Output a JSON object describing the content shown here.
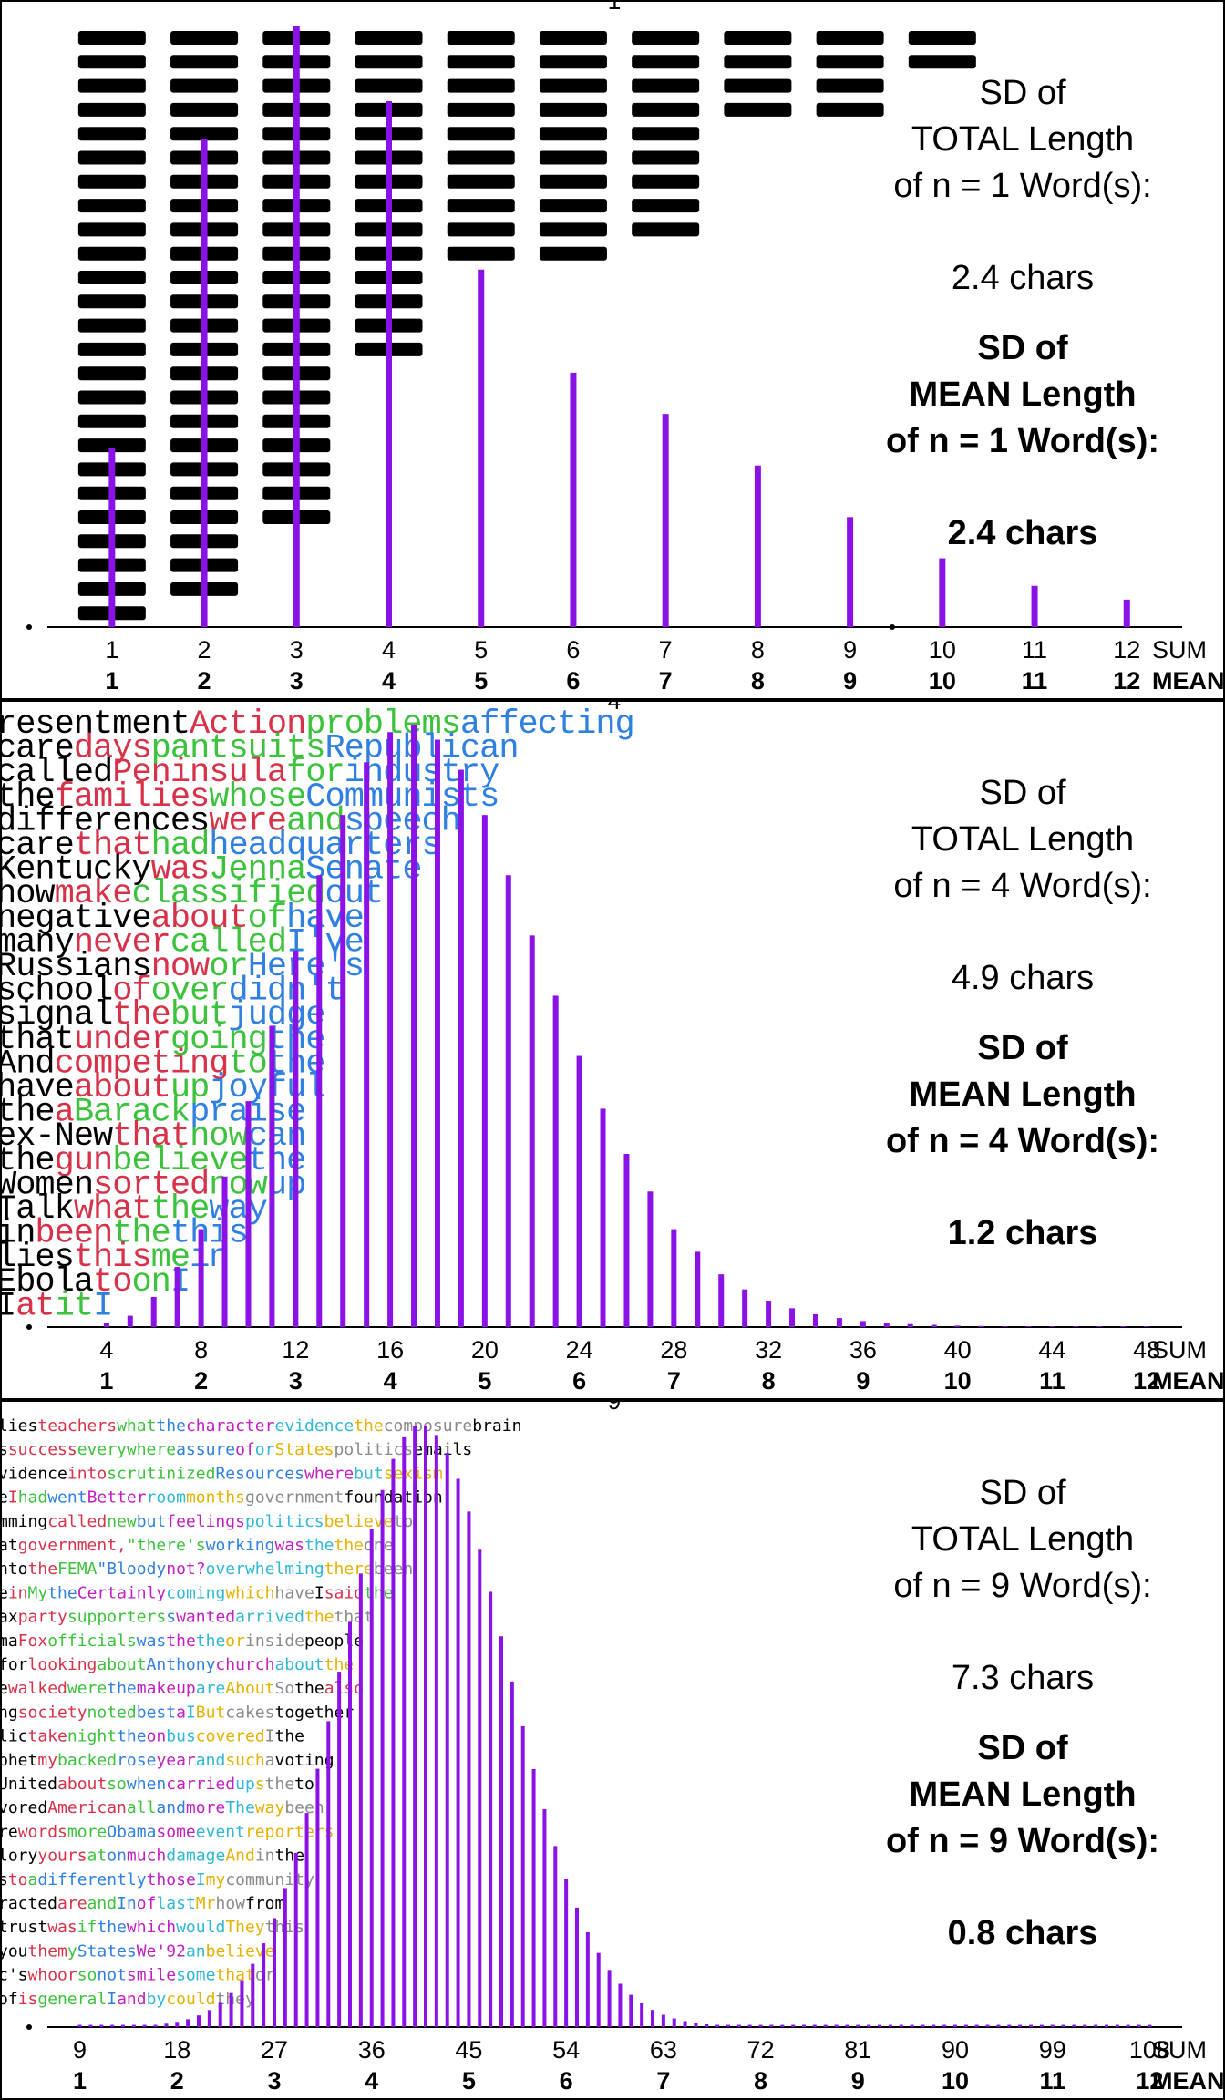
{
  "colors": {
    "bar": "#8B12E6",
    "word_palette_4": [
      "#000000",
      "#D6334A",
      "#3CC23C",
      "#2F80E0"
    ],
    "word_palette_9": [
      "#000000",
      "#D6334A",
      "#3CC23C",
      "#2F80E0",
      "#C21FC2",
      "#2FB7D6",
      "#E5B100",
      "#8A8A8A"
    ]
  },
  "panels": [
    {
      "n": 1,
      "top_number": "1",
      "stats": {
        "sd_total_lines": [
          "SD of",
          "TOTAL Length",
          "of n = 1 Word(s):"
        ],
        "sd_total_value": "2.4 chars",
        "sd_mean_lines": [
          "SD of",
          "MEAN Length",
          "of n = 1 Word(s):"
        ],
        "sd_mean_value": "2.4 chars"
      },
      "sum_label": "SUM",
      "mean_label": "MEAN"
    },
    {
      "n": 4,
      "top_number": "4",
      "stats": {
        "sd_total_lines": [
          "SD of",
          "TOTAL Length",
          "of n = 4 Word(s):"
        ],
        "sd_total_value": "4.9 chars",
        "sd_mean_lines": [
          "SD of",
          "MEAN Length",
          "of n = 4 Word(s):"
        ],
        "sd_mean_value": "1.2 chars"
      },
      "sum_label": "SUM",
      "mean_label": "MEAN",
      "word_rows": [
        [
          "resentment",
          "Action",
          "problems",
          "affecting"
        ],
        [
          "care",
          "days",
          "pantsuits",
          "Republican"
        ],
        [
          "called",
          "Peninsula",
          "for",
          "industry"
        ],
        [
          "the",
          "families",
          "whose",
          "Communists"
        ],
        [
          "differences",
          "were",
          "and",
          "speech"
        ],
        [
          "care",
          "that",
          "had",
          "headquarters"
        ],
        [
          "Kentucky",
          "was",
          "Jenna",
          "Senate"
        ],
        [
          "how",
          "make",
          "classified",
          "out"
        ],
        [
          "negative",
          "about",
          "of",
          "have"
        ],
        [
          "many",
          "never",
          "called",
          "I've"
        ],
        [
          "Russians",
          "now",
          "or",
          "Here's"
        ],
        [
          "school",
          "of",
          "over",
          "didn't"
        ],
        [
          "signal",
          "the",
          "but",
          "judge"
        ],
        [
          "that",
          "under",
          "going",
          "the"
        ],
        [
          "And",
          "competing",
          "to",
          "the"
        ],
        [
          "have",
          "about",
          "up",
          "joyful"
        ],
        [
          "the",
          "a",
          "Barack",
          "praise"
        ],
        [
          "ex-New",
          "that",
          "now",
          "can"
        ],
        [
          "the",
          "gun",
          "believe",
          "the"
        ],
        [
          "Women",
          "sorted",
          "now",
          "up"
        ],
        [
          "Talk",
          "what",
          "the",
          "way"
        ],
        [
          "in",
          "been",
          "the",
          "this"
        ],
        [
          "lies",
          "this",
          "me",
          "in"
        ],
        [
          "Ebola",
          "to",
          "on",
          "I"
        ],
        [
          "I",
          "at",
          "it",
          "I"
        ]
      ]
    },
    {
      "n": 9,
      "top_number": "9",
      "stats": {
        "sd_total_lines": [
          "SD of",
          "TOTAL Length",
          "of n = 9 Word(s):"
        ],
        "sd_total_value": "7.3 chars",
        "sd_mean_lines": [
          "SD of",
          "MEAN Length",
          "of n = 9 Word(s):"
        ],
        "sd_mean_value": "0.8 chars"
      },
      "sum_label": "SUM",
      "mean_label": "MEAN",
      "word_rows": [
        "lies teachers what the character evidence the composure brain",
        "s success everywhere assure of or States politics emails",
        "vidence into scrutinized Resources where but sexism",
        "e I had went Better room months government foundation",
        "mming called new but feelings politics believe to",
        "at government, \"there's working was the the one",
        "nto the FEMA \"Bloody not? overwhelming there been",
        "e in My the Certainly coming which have I said the",
        "ax party supporters s wanted arrived the that",
        "ma Fox officials was the the or inside people",
        "for looking about Anthony church about the",
        "e walked were the makeup are About So the also",
        "ng society noted best a I But cakes together",
        "lic take night the on bus covered I the",
        "phet my backed rose year and such a voting",
        "United about so when carried up s the to",
        "vored American all and more The way been",
        "re words more Obama some event reporters",
        "lory yours at on much damage And in the",
        "s to a differently those I my community",
        "racted are and In of last Mr how from",
        "trust was if the which would They this",
        "you them y States We'92 an believe",
        "c's whoor so not smile some that or",
        "of is general I and by could they"
      ]
    }
  ],
  "chart_data": [
    {
      "type": "bar",
      "title": "",
      "n_words": 1,
      "xlabel": "SUM / MEAN",
      "ylabel": "",
      "x_tick_labels_sum": [
        "1",
        "2",
        "3",
        "4",
        "5",
        "6",
        "7",
        "8",
        "9",
        "10",
        "11",
        "12"
      ],
      "x_tick_labels_mean": [
        "1",
        "2",
        "3",
        "4",
        "5",
        "6",
        "7",
        "8",
        "9",
        "10",
        "11",
        "12"
      ],
      "x": [
        1,
        2,
        3,
        4,
        5,
        6,
        7,
        8,
        9,
        10,
        11,
        12
      ],
      "values": [
        0.052,
        0.142,
        0.175,
        0.153,
        0.104,
        0.074,
        0.062,
        0.047,
        0.032,
        0.02,
        0.012,
        0.008
      ],
      "value_unit": "relative frequency (estimated)",
      "word_stack_counts": [
        25,
        24,
        21,
        14,
        10,
        10,
        9,
        4,
        4,
        2
      ],
      "xlim": [
        0.3,
        12.6
      ],
      "sd_total": "2.4 chars",
      "sd_mean": "2.4 chars"
    },
    {
      "type": "bar",
      "title": "",
      "n_words": 4,
      "xlabel": "SUM / MEAN",
      "ylabel": "",
      "x_tick_labels_sum": [
        "4",
        "8",
        "12",
        "16",
        "20",
        "24",
        "28",
        "32",
        "36",
        "40",
        "44",
        "48"
      ],
      "x_tick_labels_mean": [
        "1",
        "2",
        "3",
        "4",
        "5",
        "6",
        "7",
        "8",
        "9",
        "10",
        "11",
        "12"
      ],
      "x": [
        4,
        5,
        6,
        7,
        8,
        9,
        10,
        11,
        12,
        13,
        14,
        15,
        16,
        17,
        18,
        19,
        20,
        21,
        22,
        23,
        24,
        25,
        26,
        27,
        28,
        29,
        30,
        31,
        32,
        33,
        34,
        35,
        36,
        37,
        38,
        39,
        40,
        41,
        42,
        43,
        44,
        45,
        46,
        47,
        48
      ],
      "values": [
        0.0005,
        0.0015,
        0.004,
        0.008,
        0.013,
        0.02,
        0.03,
        0.04,
        0.05,
        0.06,
        0.068,
        0.075,
        0.079,
        0.08,
        0.078,
        0.074,
        0.068,
        0.06,
        0.052,
        0.044,
        0.036,
        0.029,
        0.023,
        0.018,
        0.013,
        0.01,
        0.007,
        0.005,
        0.0035,
        0.0025,
        0.0017,
        0.0012,
        0.0008,
        0.0005,
        0.0004,
        0.0003,
        0.0002,
        0.00015,
        0.0001,
        0.0001,
        0.0001,
        0.0001,
        0.0001,
        0.0001,
        0.0001
      ],
      "value_unit": "relative frequency (estimated)",
      "xlim": [
        1.5,
        49.5
      ],
      "sd_total": "4.9 chars",
      "sd_mean": "1.2 chars"
    },
    {
      "type": "bar",
      "title": "",
      "n_words": 9,
      "xlabel": "SUM / MEAN",
      "ylabel": "",
      "x_tick_labels_sum": [
        "9",
        "18",
        "27",
        "36",
        "45",
        "54",
        "63",
        "72",
        "81",
        "90",
        "99",
        "108"
      ],
      "x_tick_labels_mean": [
        "1",
        "2",
        "3",
        "4",
        "5",
        "6",
        "7",
        "8",
        "9",
        "10",
        "11",
        "12"
      ],
      "x_from": 9,
      "x_to": 108,
      "distribution": {
        "peak_at_sum": 40.5,
        "sd_sum": 7.3,
        "peak_value": 0.0545
      },
      "value_unit": "relative frequency (estimated)",
      "xlim": [
        6,
        111
      ],
      "sd_total": "7.3 chars",
      "sd_mean": "0.8 chars"
    }
  ]
}
